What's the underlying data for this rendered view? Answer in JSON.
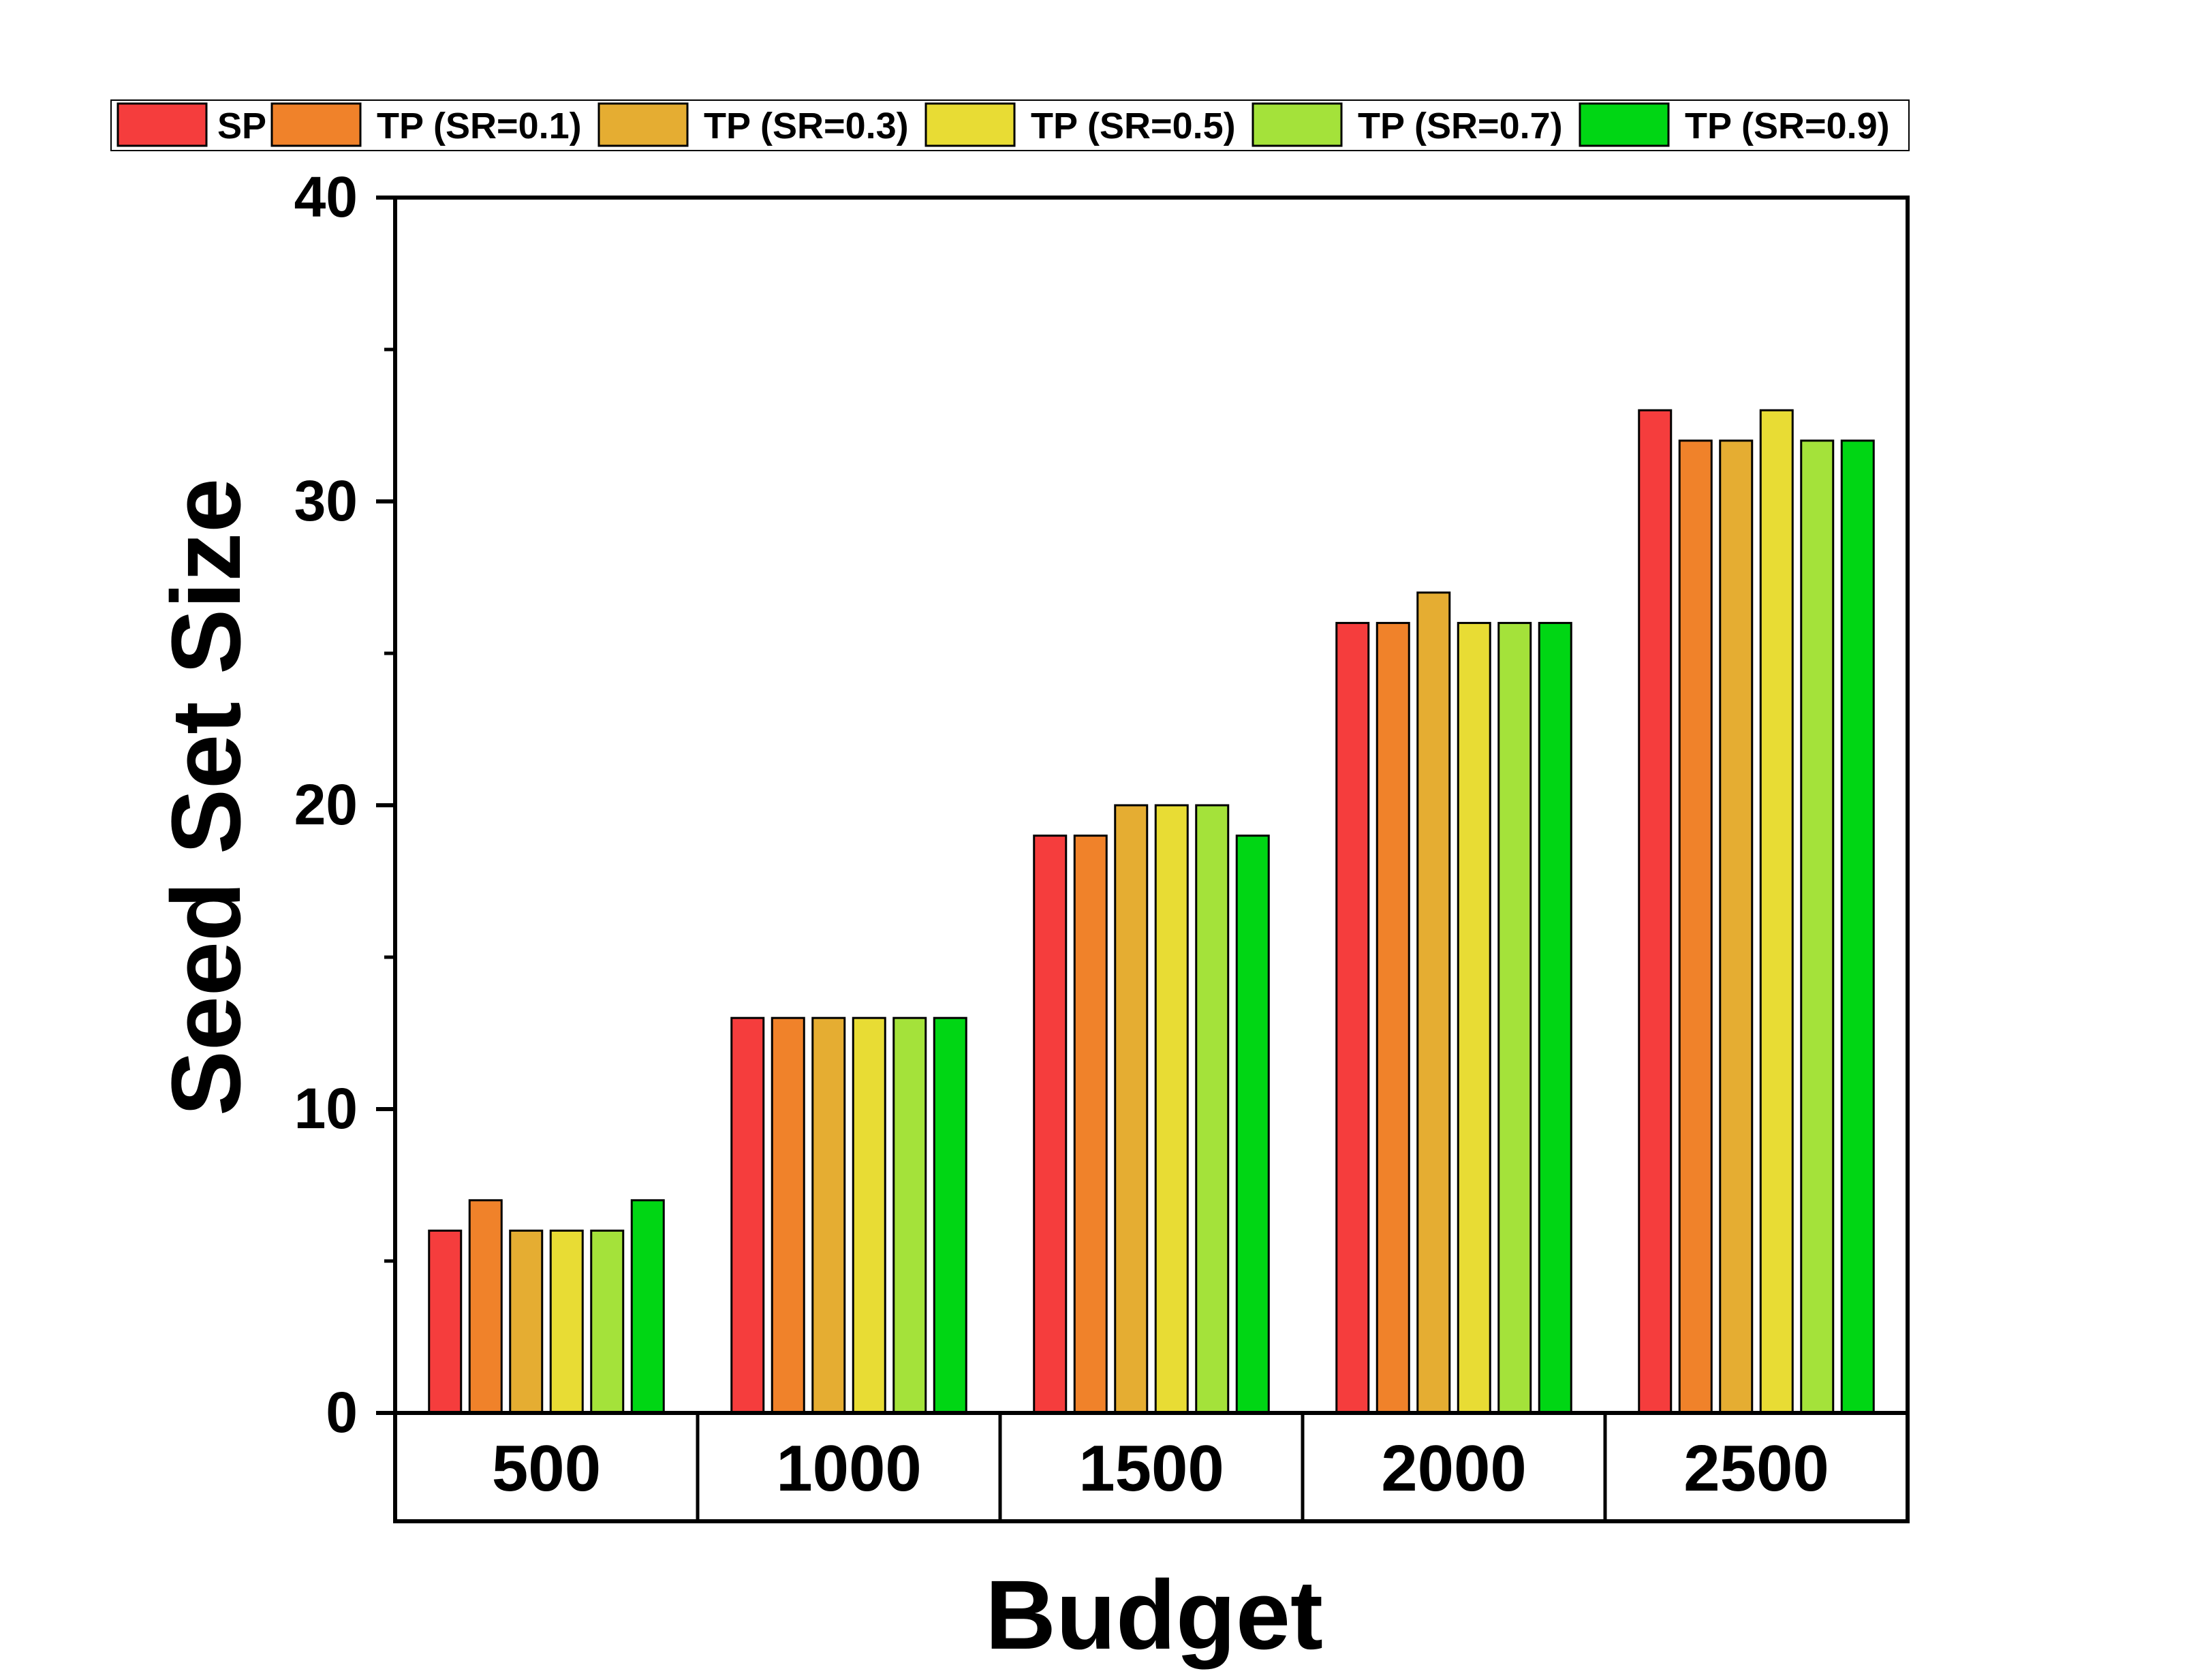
{
  "chart_data": {
    "type": "bar",
    "title": "",
    "xlabel": "Budget",
    "ylabel": "Seed Set Size",
    "categories": [
      "500",
      "1000",
      "1500",
      "2000",
      "2500"
    ],
    "ylim": [
      0,
      40
    ],
    "yticks": [
      0,
      10,
      20,
      30,
      40
    ],
    "yticks_minor": [
      5,
      15,
      25,
      35
    ],
    "grid": false,
    "legend_position": "top",
    "series": [
      {
        "name": "SP",
        "color": "#F53D3D",
        "values": [
          6,
          13,
          19,
          26,
          33
        ]
      },
      {
        "name": "TP (SR=0.1)",
        "color": "#F0822A",
        "values": [
          7,
          13,
          19,
          26,
          32
        ]
      },
      {
        "name": "TP (SR=0.3)",
        "color": "#E5AD32",
        "values": [
          6,
          13,
          20,
          27,
          32
        ]
      },
      {
        "name": "TP (SR=0.5)",
        "color": "#E8DC34",
        "values": [
          6,
          13,
          20,
          26,
          33
        ]
      },
      {
        "name": "TP (SR=0.7)",
        "color": "#A4E23A",
        "values": [
          6,
          13,
          20,
          26,
          32
        ]
      },
      {
        "name": "TP (SR=0.9)",
        "color": "#00D614",
        "values": [
          7,
          13,
          19,
          26,
          32
        ]
      }
    ]
  }
}
